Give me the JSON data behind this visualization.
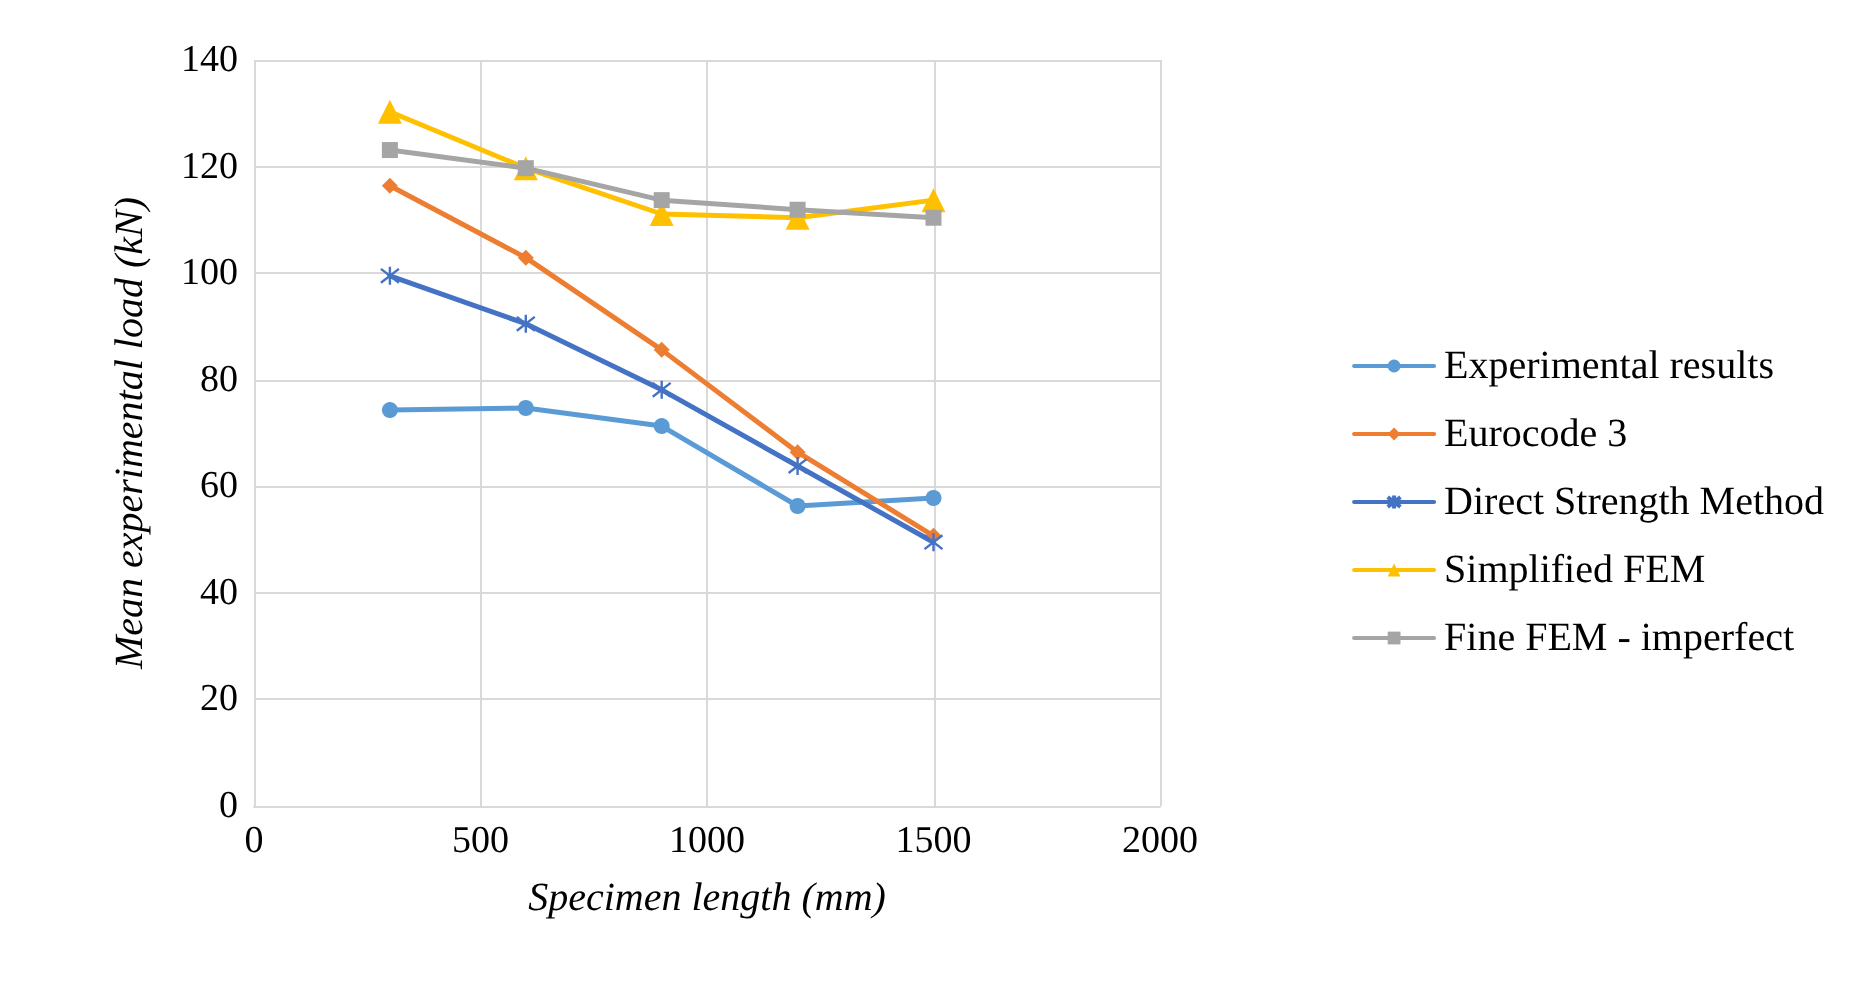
{
  "chart_data": {
    "type": "line",
    "xlabel": "Specimen length (mm)",
    "ylabel": "Mean experimental load (kN)",
    "x": [
      300,
      600,
      900,
      1200,
      1500
    ],
    "xlim": [
      0,
      2000
    ],
    "xticks": [
      0,
      500,
      1000,
      1500,
      2000
    ],
    "ylim": [
      0,
      140
    ],
    "yticks": [
      0,
      20,
      40,
      60,
      80,
      100,
      120,
      140
    ],
    "grid": true,
    "legend": "right",
    "series": [
      {
        "name": "Experimental results",
        "color": "#5b9bd5",
        "marker": "circle",
        "values": [
          74.3,
          74.7,
          71.3,
          56.3,
          57.8
        ]
      },
      {
        "name": "Eurocode 3",
        "color": "#ed7d31",
        "marker": "diamond",
        "values": [
          116.4,
          102.9,
          85.6,
          66.4,
          50.7
        ]
      },
      {
        "name": "Direct Strength Method",
        "color": "#4472c4",
        "marker": "cross",
        "values": [
          99.5,
          90.5,
          78.1,
          63.8,
          49.5
        ]
      },
      {
        "name": "Simplified FEM",
        "color": "#ffc000",
        "marker": "triangle",
        "values": [
          130.3,
          119.7,
          111.1,
          110.4,
          113.7
        ]
      },
      {
        "name": "Fine FEM - imperfect",
        "color": "#a5a5a5",
        "marker": "square",
        "values": [
          123.1,
          119.7,
          113.7,
          111.9,
          110.4
        ]
      }
    ]
  }
}
